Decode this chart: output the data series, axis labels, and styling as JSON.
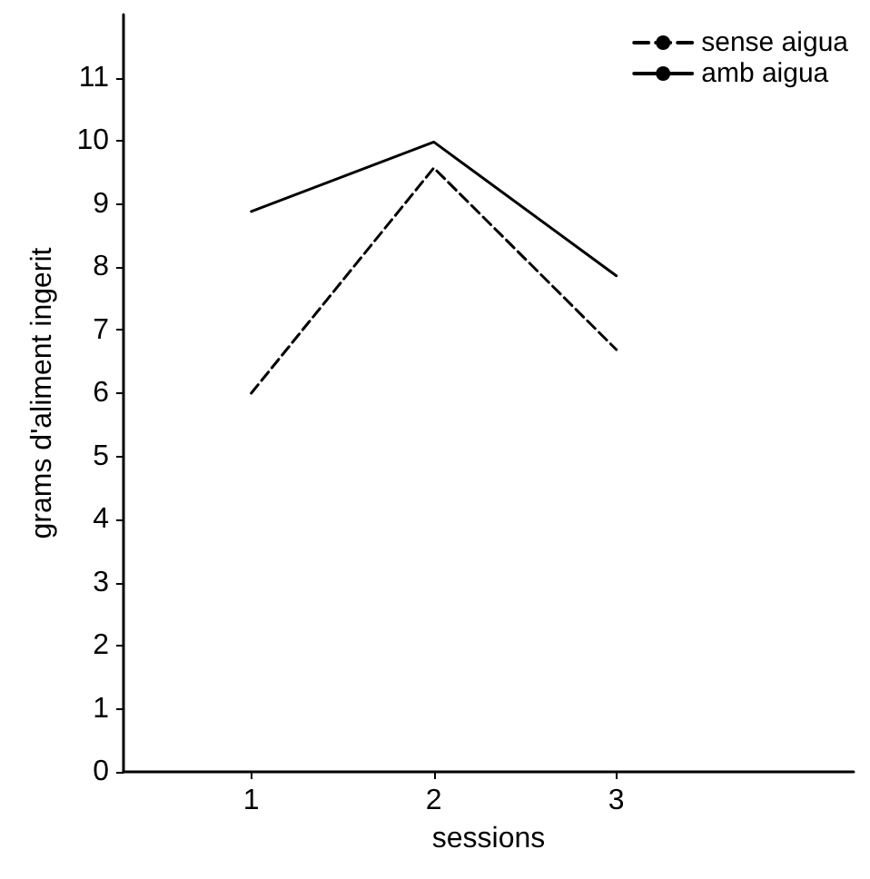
{
  "chart_data": {
    "type": "line",
    "xlabel": "sessions",
    "ylabel": "grams d'aliment ingerit",
    "x": [
      1,
      2,
      3
    ],
    "xlim": [
      0.3,
      4.3
    ],
    "xticks": [
      1,
      2,
      3
    ],
    "ylim": [
      0,
      12
    ],
    "yticks": [
      0,
      1,
      2,
      3,
      4,
      5,
      6,
      7,
      8,
      9,
      10,
      11
    ],
    "series": [
      {
        "name": "sense aigua",
        "color": "#000000",
        "line_style": "dashed",
        "values": [
          6.0,
          9.57,
          6.69
        ]
      },
      {
        "name": "amb aigua",
        "color": "#000000",
        "line_style": "solid",
        "values": [
          8.88,
          9.98,
          7.86
        ]
      }
    ],
    "grid": false,
    "legend": "top right",
    "marker": "none"
  }
}
